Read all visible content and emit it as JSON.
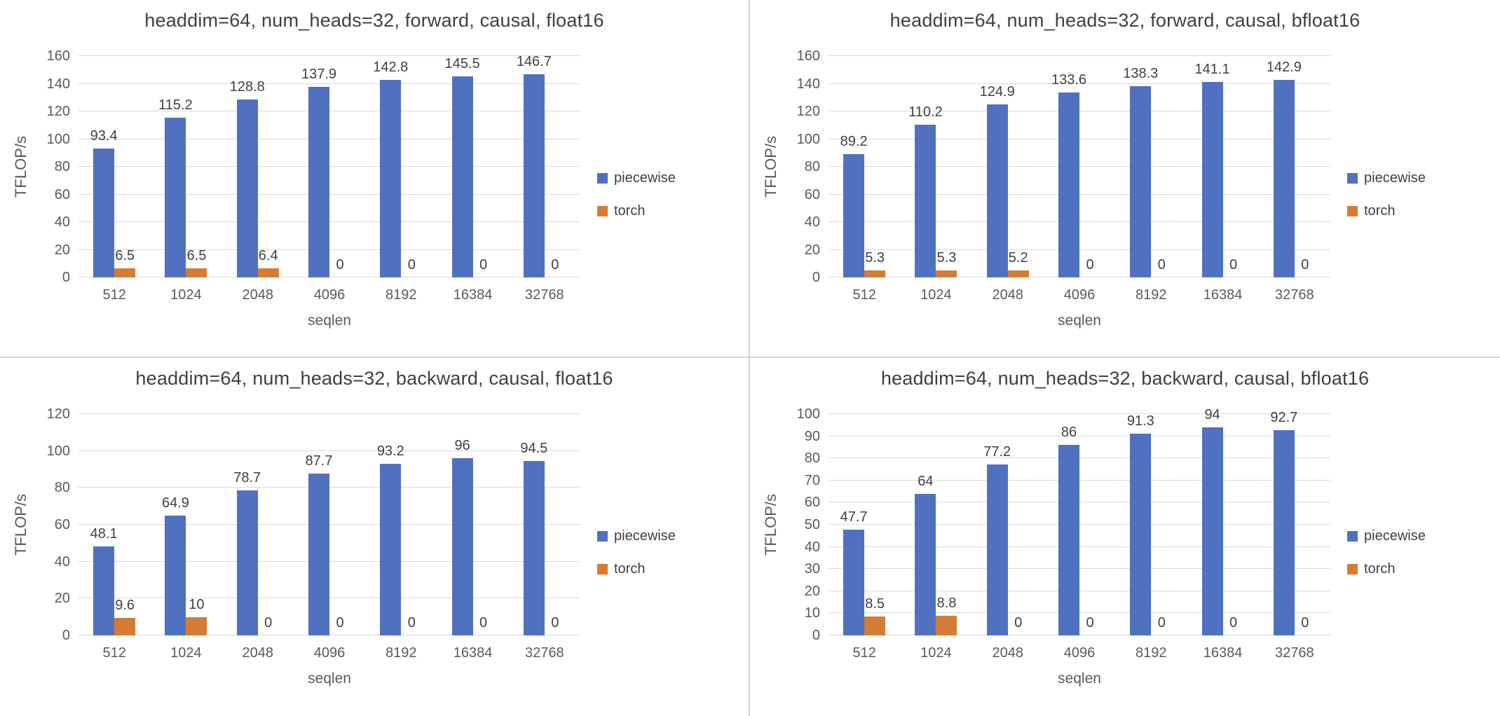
{
  "colors": {
    "piecewise": "#5071c0",
    "torch": "#d47c35",
    "grid": "#d9d9d9",
    "axis_text": "#595959",
    "title_text": "#3f3f3f",
    "divider": "#d4d4d4"
  },
  "legend": {
    "items": [
      {
        "name": "piecewise"
      },
      {
        "name": "torch"
      }
    ]
  },
  "chart_data": [
    {
      "type": "bar",
      "title": "headdim=64, num_heads=32, forward, causal, float16",
      "xlabel": "seqlen",
      "ylabel": "TFLOP/s",
      "ylim": [
        0,
        160
      ],
      "ytick_step": 20,
      "grid": true,
      "legend_position": "right",
      "categories": [
        "512",
        "1024",
        "2048",
        "4096",
        "8192",
        "16384",
        "32768"
      ],
      "series": [
        {
          "name": "piecewise",
          "values": [
            93.4,
            115.2,
            128.8,
            137.9,
            142.8,
            145.5,
            146.7
          ],
          "labels": [
            "93.4",
            "115.2",
            "128.8",
            "137.9",
            "142.8",
            "145.5",
            "146.7"
          ]
        },
        {
          "name": "torch",
          "values": [
            6.5,
            6.5,
            6.4,
            0,
            0,
            0,
            0
          ],
          "labels": [
            "6.5",
            "6.5",
            "6.4",
            "0",
            "0",
            "0",
            "0"
          ]
        }
      ]
    },
    {
      "type": "bar",
      "title": "headdim=64, num_heads=32, forward, causal, bfloat16",
      "xlabel": "seqlen",
      "ylabel": "TFLOP/s",
      "ylim": [
        0,
        160
      ],
      "ytick_step": 20,
      "grid": true,
      "legend_position": "right",
      "categories": [
        "512",
        "1024",
        "2048",
        "4096",
        "8192",
        "16384",
        "32768"
      ],
      "series": [
        {
          "name": "piecewise",
          "values": [
            89.2,
            110.2,
            124.9,
            133.6,
            138.3,
            141.1,
            142.9
          ],
          "labels": [
            "89.2",
            "110.2",
            "124.9",
            "133.6",
            "138.3",
            "141.1",
            "142.9"
          ]
        },
        {
          "name": "torch",
          "values": [
            5.3,
            5.3,
            5.2,
            0,
            0,
            0,
            0
          ],
          "labels": [
            "5.3",
            "5.3",
            "5.2",
            "0",
            "0",
            "0",
            "0"
          ]
        }
      ]
    },
    {
      "type": "bar",
      "title": "headdim=64, num_heads=32, backward, causal, float16",
      "xlabel": "seqlen",
      "ylabel": "TFLOP/s",
      "ylim": [
        0,
        120
      ],
      "ytick_step": 20,
      "grid": true,
      "legend_position": "right",
      "categories": [
        "512",
        "1024",
        "2048",
        "4096",
        "8192",
        "16384",
        "32768"
      ],
      "series": [
        {
          "name": "piecewise",
          "values": [
            48.1,
            64.9,
            78.7,
            87.7,
            93.2,
            96,
            94.5
          ],
          "labels": [
            "48.1",
            "64.9",
            "78.7",
            "87.7",
            "93.2",
            "96",
            "94.5"
          ]
        },
        {
          "name": "torch",
          "values": [
            9.6,
            10,
            0,
            0,
            0,
            0,
            0
          ],
          "labels": [
            "9.6",
            "10",
            "0",
            "0",
            "0",
            "0",
            "0"
          ]
        }
      ]
    },
    {
      "type": "bar",
      "title": "headdim=64, num_heads=32, backward, causal, bfloat16",
      "xlabel": "seqlen",
      "ylabel": "TFLOP/s",
      "ylim": [
        0,
        100
      ],
      "ytick_step": 10,
      "grid": true,
      "legend_position": "right",
      "categories": [
        "512",
        "1024",
        "2048",
        "4096",
        "8192",
        "16384",
        "32768"
      ],
      "series": [
        {
          "name": "piecewise",
          "values": [
            47.7,
            64,
            77.2,
            86,
            91.3,
            94,
            92.7
          ],
          "labels": [
            "47.7",
            "64",
            "77.2",
            "86",
            "91.3",
            "94",
            "92.7"
          ]
        },
        {
          "name": "torch",
          "values": [
            8.5,
            8.8,
            0,
            0,
            0,
            0,
            0
          ],
          "labels": [
            "8.5",
            "8.8",
            "0",
            "0",
            "0",
            "0",
            "0"
          ]
        }
      ]
    }
  ]
}
